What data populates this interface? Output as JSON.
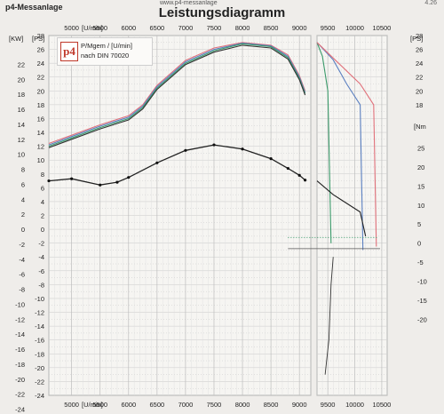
{
  "header": {
    "left": "p4-Messanlage",
    "center_small": "www.p4-messanlage",
    "title": "Leistungsdiagramm",
    "right": "4.26"
  },
  "legend": {
    "logo": "p4",
    "line1": "P/Mgem / [U/min]",
    "line2": "nach DIN 70020"
  },
  "watermark": "p4",
  "axis_labels": {
    "kw": "[KW]",
    "ps_left": "[PS]",
    "rpm": "[U/min]",
    "ps_right": "[PS]",
    "nm": "[Nm"
  },
  "chart_data": {
    "type": "line",
    "title": "Leistungsdiagramm",
    "xlabel": "[U/min]",
    "x_range": [
      4600,
      9200
    ],
    "x_range_right_panel": [
      9300,
      10600
    ],
    "x_ticks_main": [
      5000,
      5500,
      6000,
      6500,
      7000,
      7500,
      8000,
      8500,
      9000
    ],
    "x_ticks_right": [
      9500,
      10000,
      10500
    ],
    "left_axis_kw": {
      "label": "[KW]",
      "ticks": [
        -24,
        -22,
        -20,
        -18,
        -16,
        -14,
        -12,
        -10,
        -8,
        -6,
        -4,
        -2,
        0,
        2,
        4,
        6,
        8,
        10,
        12,
        14,
        16,
        18,
        20,
        22
      ]
    },
    "left_axis_ps": {
      "label": "[PS]",
      "ticks": [
        -24,
        -22,
        -20,
        -18,
        -16,
        -14,
        -12,
        -10,
        -8,
        -6,
        -4,
        -2,
        0,
        2,
        4,
        6,
        8,
        10,
        12,
        14,
        16,
        18,
        20,
        22,
        24,
        26,
        28
      ]
    },
    "right_axis_ps": {
      "label": "[PS]",
      "ticks": [
        18,
        20,
        22,
        24,
        26,
        28
      ]
    },
    "right_axis_nm": {
      "label": "[Nm",
      "ticks": [
        -20,
        -15,
        -10,
        -5,
        0,
        5,
        10,
        15,
        20,
        25
      ]
    },
    "grid": true,
    "series": [
      {
        "color": "#e0707a",
        "role": "power",
        "x": [
          4600,
          5000,
          5500,
          6000,
          6250,
          6500,
          7000,
          7500,
          8000,
          8500,
          8800,
          9000,
          9100
        ],
        "values": [
          12.4,
          13.6,
          15.1,
          16.4,
          18,
          20.8,
          24.4,
          26.2,
          27,
          26.6,
          25.2,
          22.2,
          20
        ]
      },
      {
        "color": "#5a7fc0",
        "role": "power",
        "x": [
          4600,
          5000,
          5500,
          6000,
          6250,
          6500,
          7000,
          7500,
          8000,
          8500,
          8800,
          9000,
          9100
        ],
        "values": [
          12.2,
          13.4,
          14.9,
          16.2,
          17.8,
          20.6,
          24.2,
          26,
          26.9,
          26.5,
          25,
          22,
          19.8
        ]
      },
      {
        "color": "#3a9a6a",
        "role": "power",
        "x": [
          4600,
          5000,
          5500,
          6000,
          6250,
          6500,
          7000,
          7500,
          8000,
          8500,
          8800,
          9000,
          9100
        ],
        "values": [
          12,
          13.2,
          14.7,
          16,
          17.6,
          20.4,
          24,
          25.8,
          26.8,
          26.4,
          24.8,
          21.8,
          19.6
        ]
      },
      {
        "color": "#333333",
        "role": "power",
        "x": [
          4600,
          5000,
          5500,
          6000,
          6250,
          6500,
          7000,
          7500,
          8000,
          8500,
          8800,
          9000,
          9100
        ],
        "values": [
          11.8,
          13,
          14.5,
          15.8,
          17.4,
          20.2,
          23.8,
          25.6,
          26.6,
          26.2,
          24.6,
          21.6,
          19.4
        ]
      },
      {
        "color": "#222222",
        "role": "torque",
        "x": [
          4600,
          5000,
          5500,
          5800,
          6000,
          6500,
          7000,
          7500,
          8000,
          8500,
          8800,
          9000,
          9100
        ],
        "values": [
          7,
          7.3,
          6.4,
          6.8,
          7.5,
          9.6,
          11.4,
          12.2,
          11.6,
          10.2,
          8.8,
          7.8,
          7.1
        ]
      }
    ],
    "right_panel_series": [
      {
        "color": "#3a9a6a",
        "x": [
          9300,
          9400,
          9500,
          9560
        ],
        "values": [
          27,
          25,
          20,
          -2
        ]
      },
      {
        "color": "#5a7fc0",
        "x": [
          9300,
          9600,
          9850,
          10100,
          10150
        ],
        "values": [
          27,
          24.5,
          21,
          18,
          -3
        ]
      },
      {
        "color": "#e0707a",
        "x": [
          9300,
          9700,
          10100,
          10350,
          10400
        ],
        "values": [
          27,
          24,
          21,
          18,
          -2.5
        ]
      },
      {
        "color": "#222222",
        "x": [
          9300,
          9600,
          10100,
          10200
        ],
        "values": [
          7,
          5,
          2.5,
          -1
        ]
      }
    ]
  }
}
